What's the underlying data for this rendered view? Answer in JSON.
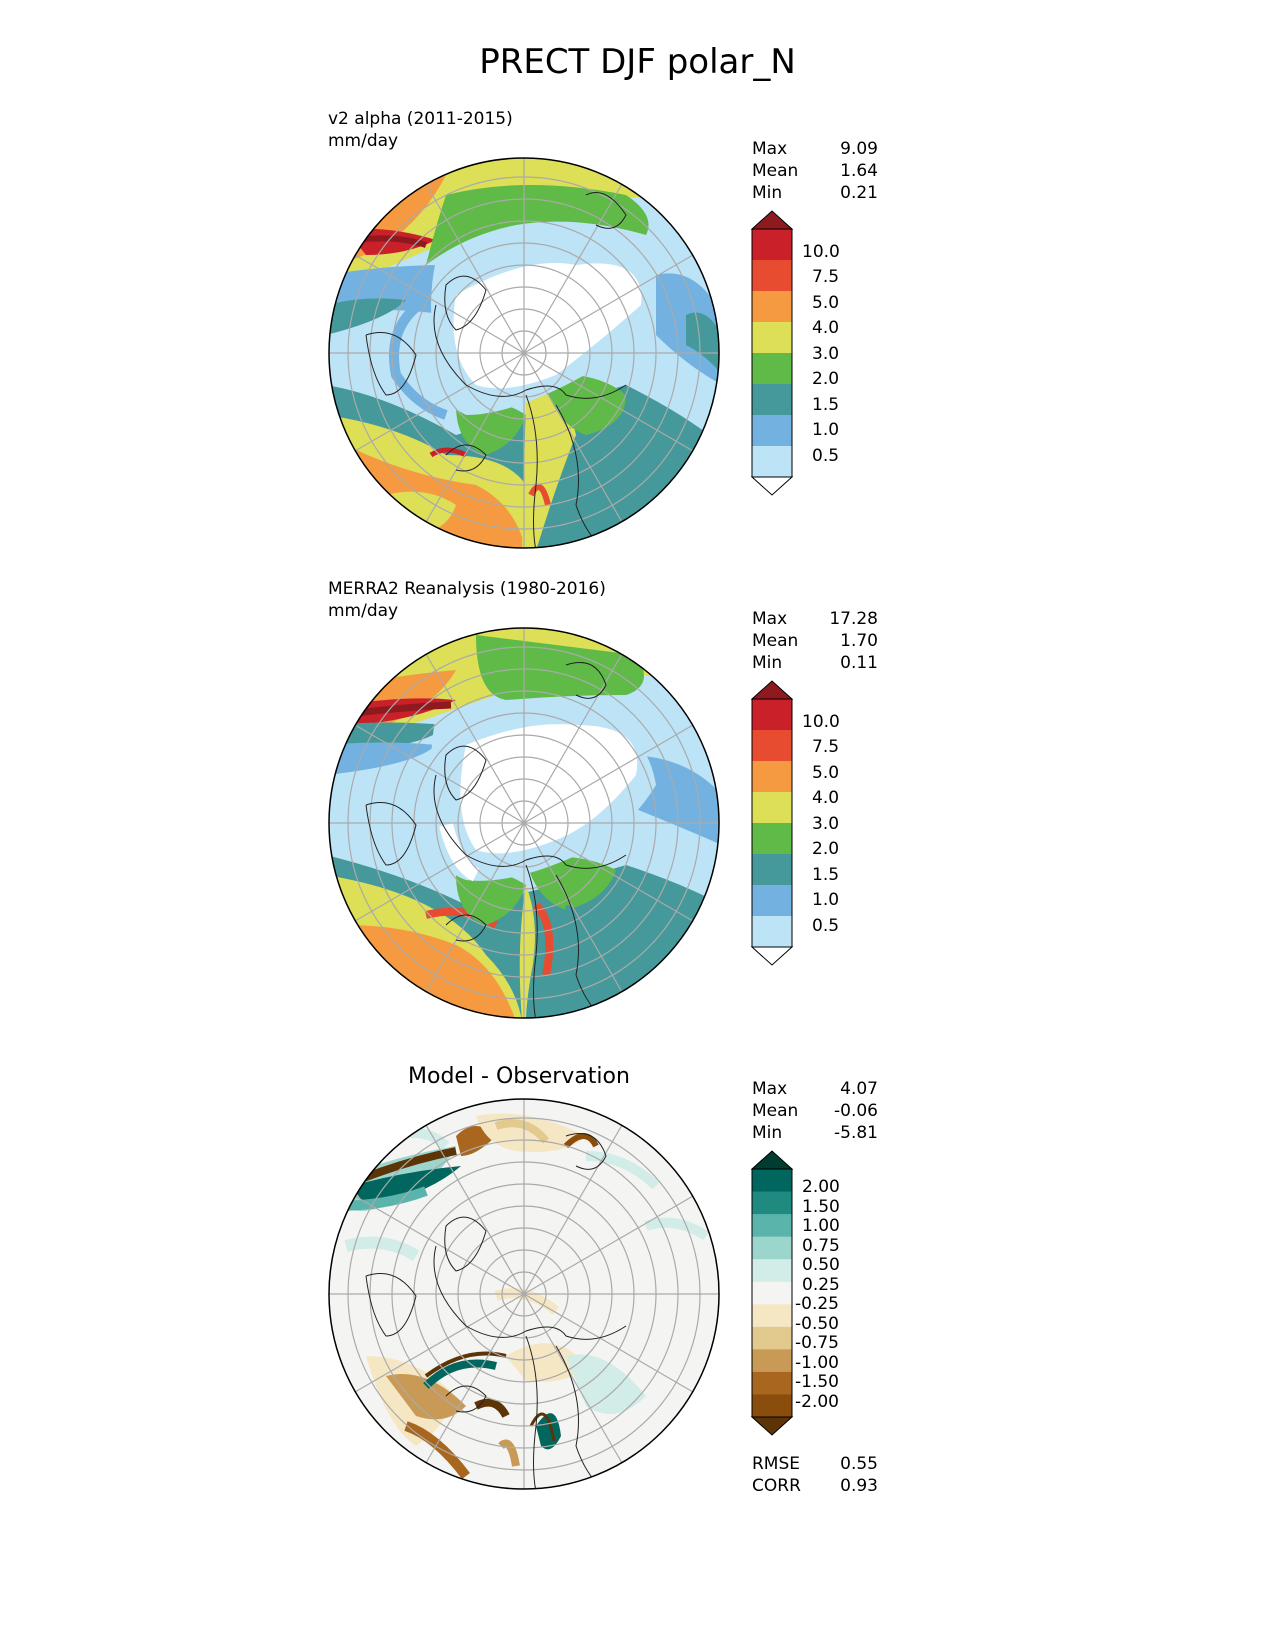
{
  "title": "PRECT DJF polar_N",
  "panels": [
    {
      "name_line1": "v2 alpha (2011-2015)",
      "name_line2": "mm/day",
      "stats": [
        {
          "label": "Max",
          "value": "9.09"
        },
        {
          "label": "Mean",
          "value": "1.64"
        },
        {
          "label": "Min",
          "value": "0.21"
        }
      ]
    },
    {
      "name_line1": "MERRA2 Reanalysis (1980-2016)",
      "name_line2": "mm/day",
      "stats": [
        {
          "label": "Max",
          "value": "17.28"
        },
        {
          "label": "Mean",
          "value": "1.70"
        },
        {
          "label": "Min",
          "value": "0.11"
        }
      ]
    },
    {
      "center_title": "Model - Observation",
      "stats": [
        {
          "label": "Max",
          "value": "4.07"
        },
        {
          "label": "Mean",
          "value": "-0.06"
        },
        {
          "label": "Min",
          "value": "-5.81"
        }
      ],
      "metrics": [
        {
          "label": "RMSE",
          "value": "0.55"
        },
        {
          "label": "CORR",
          "value": "0.93"
        }
      ]
    }
  ],
  "colorbars": {
    "precip": {
      "ticks": [
        "10.0",
        "7.5",
        "5.0",
        "4.0",
        "3.0",
        "2.0",
        "1.5",
        "1.0",
        "0.5"
      ],
      "colors": [
        "#8e1a1f",
        "#c9202a",
        "#e84c30",
        "#f59a40",
        "#dddf57",
        "#5fba47",
        "#45999b",
        "#73b2e0",
        "#bde3f7",
        "#ffffff"
      ]
    },
    "diff": {
      "ticks": [
        "2.00",
        "1.50",
        "1.00",
        "0.75",
        "0.50",
        "0.25",
        "-0.25",
        "-0.50",
        "-0.75",
        "-1.00",
        "-1.50",
        "-2.00"
      ],
      "colors": [
        "#013c30",
        "#01665e",
        "#1f8a80",
        "#5ab4ac",
        "#9bd5cc",
        "#d2ece8",
        "#f4f4f2",
        "#f6e7c4",
        "#e2c98e",
        "#c99a55",
        "#a8661e",
        "#8a4d0c",
        "#5c3406"
      ]
    }
  }
}
